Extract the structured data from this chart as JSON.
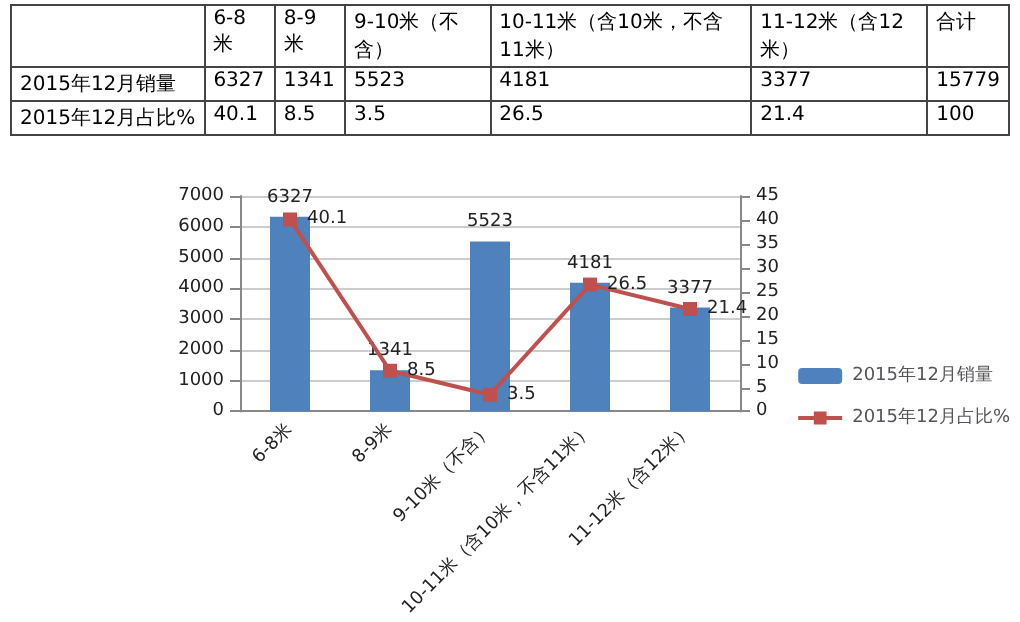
{
  "chart_data": {
    "type": "bar",
    "categories": [
      "6-8米",
      "8-9米",
      "9-10米（不含）",
      "10-11米（含10米，不含11米）",
      "11-12米（含12米）"
    ],
    "series": [
      {
        "name": "2015年12月销量",
        "color": "#4f81bd",
        "values": [
          6327,
          1341,
          5523,
          4181,
          3377
        ],
        "value_labels": [
          "6327",
          "1341",
          "5523",
          "4181",
          "3377"
        ]
      },
      {
        "name": "2015年12月占比%",
        "type": "line",
        "axis": "y2",
        "color": "#c0504d",
        "values": [
          40.1,
          8.5,
          3.5,
          26.5,
          21.4
        ],
        "value_labels": [
          "40.1",
          "8.5",
          "3.5",
          "26.5",
          "21.4"
        ]
      }
    ],
    "ylim": [
      0,
      7000
    ],
    "yticks": [
      0,
      1000,
      2000,
      3000,
      4000,
      5000,
      6000,
      7000
    ],
    "y2lim": [
      0,
      45
    ],
    "y2ticks": [
      0,
      5,
      10,
      15,
      20,
      25,
      30,
      35,
      40,
      45
    ],
    "grid": "y",
    "legend": "right",
    "marker": "square",
    "annotations": [
      "合计",
      "15779",
      "100"
    ]
  }
}
